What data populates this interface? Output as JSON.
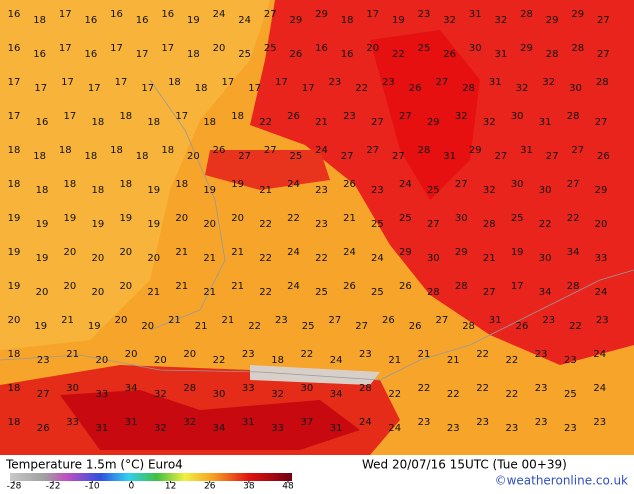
{
  "header": {
    "title": "Temperature 1.5m (°C) Euro4",
    "valid_time": "Wed 20/07/16 15UTC (Tue 00+39)",
    "credit": "©weatheronline.co.uk"
  },
  "colorbar": {
    "ticks": [
      -28,
      -22,
      -10,
      0,
      12,
      26,
      38,
      48
    ]
  },
  "temperature_rows": [
    [
      16,
      18,
      17,
      16,
      16,
      16,
      16,
      19,
      24,
      24,
      27,
      29,
      29,
      18,
      17,
      19,
      23,
      32,
      31,
      32,
      28,
      29,
      29,
      27
    ],
    [
      16,
      16,
      17,
      16,
      17,
      17,
      17,
      18,
      20,
      25,
      25,
      26,
      16,
      16,
      20,
      22,
      25,
      26,
      30,
      31,
      29,
      28,
      28,
      27
    ],
    [
      17,
      17,
      17,
      17,
      17,
      17,
      18,
      18,
      17,
      17,
      17,
      17,
      23,
      22,
      23,
      26,
      27,
      28,
      31,
      32,
      32,
      30,
      28
    ],
    [
      17,
      16,
      17,
      18,
      18,
      18,
      17,
      18,
      18,
      22,
      26,
      21,
      23,
      27,
      27,
      29,
      32,
      32,
      30,
      31,
      28,
      27
    ],
    [
      18,
      18,
      18,
      18,
      18,
      18,
      18,
      20,
      26,
      27,
      27,
      25,
      24,
      27,
      27,
      27,
      28,
      31,
      29,
      27,
      31,
      27,
      27,
      26
    ],
    [
      18,
      18,
      18,
      18,
      18,
      19,
      18,
      19,
      19,
      21,
      24,
      23,
      26,
      23,
      24,
      25,
      27,
      32,
      30,
      30,
      27,
      29
    ],
    [
      19,
      19,
      19,
      19,
      19,
      19,
      20,
      20,
      20,
      22,
      22,
      23,
      21,
      25,
      25,
      27,
      30,
      28,
      25,
      22,
      22,
      20
    ],
    [
      19,
      19,
      20,
      20,
      20,
      20,
      21,
      21,
      21,
      22,
      24,
      22,
      24,
      24,
      29,
      30,
      29,
      21,
      19,
      30,
      34,
      33
    ],
    [
      19,
      20,
      20,
      20,
      20,
      21,
      21,
      21,
      21,
      22,
      24,
      25,
      26,
      25,
      26,
      28,
      28,
      27,
      17,
      34,
      28,
      24
    ],
    [
      20,
      19,
      21,
      19,
      20,
      20,
      21,
      21,
      21,
      22,
      23,
      25,
      27,
      27,
      26,
      26,
      27,
      28,
      31,
      26,
      23,
      22,
      23
    ],
    [
      18,
      23,
      21,
      20,
      20,
      20,
      20,
      22,
      23,
      18,
      22,
      24,
      23,
      21,
      21,
      21,
      22,
      22,
      23,
      23,
      24
    ],
    [
      18,
      27,
      30,
      33,
      34,
      32,
      28,
      30,
      33,
      32,
      30,
      34,
      28,
      22,
      22,
      22,
      22,
      22,
      23,
      25,
      24
    ],
    [
      18,
      26,
      33,
      31,
      31,
      32,
      32,
      34,
      31,
      33,
      37,
      31,
      24,
      24,
      23,
      23,
      23,
      23,
      23,
      23,
      23
    ]
  ]
}
